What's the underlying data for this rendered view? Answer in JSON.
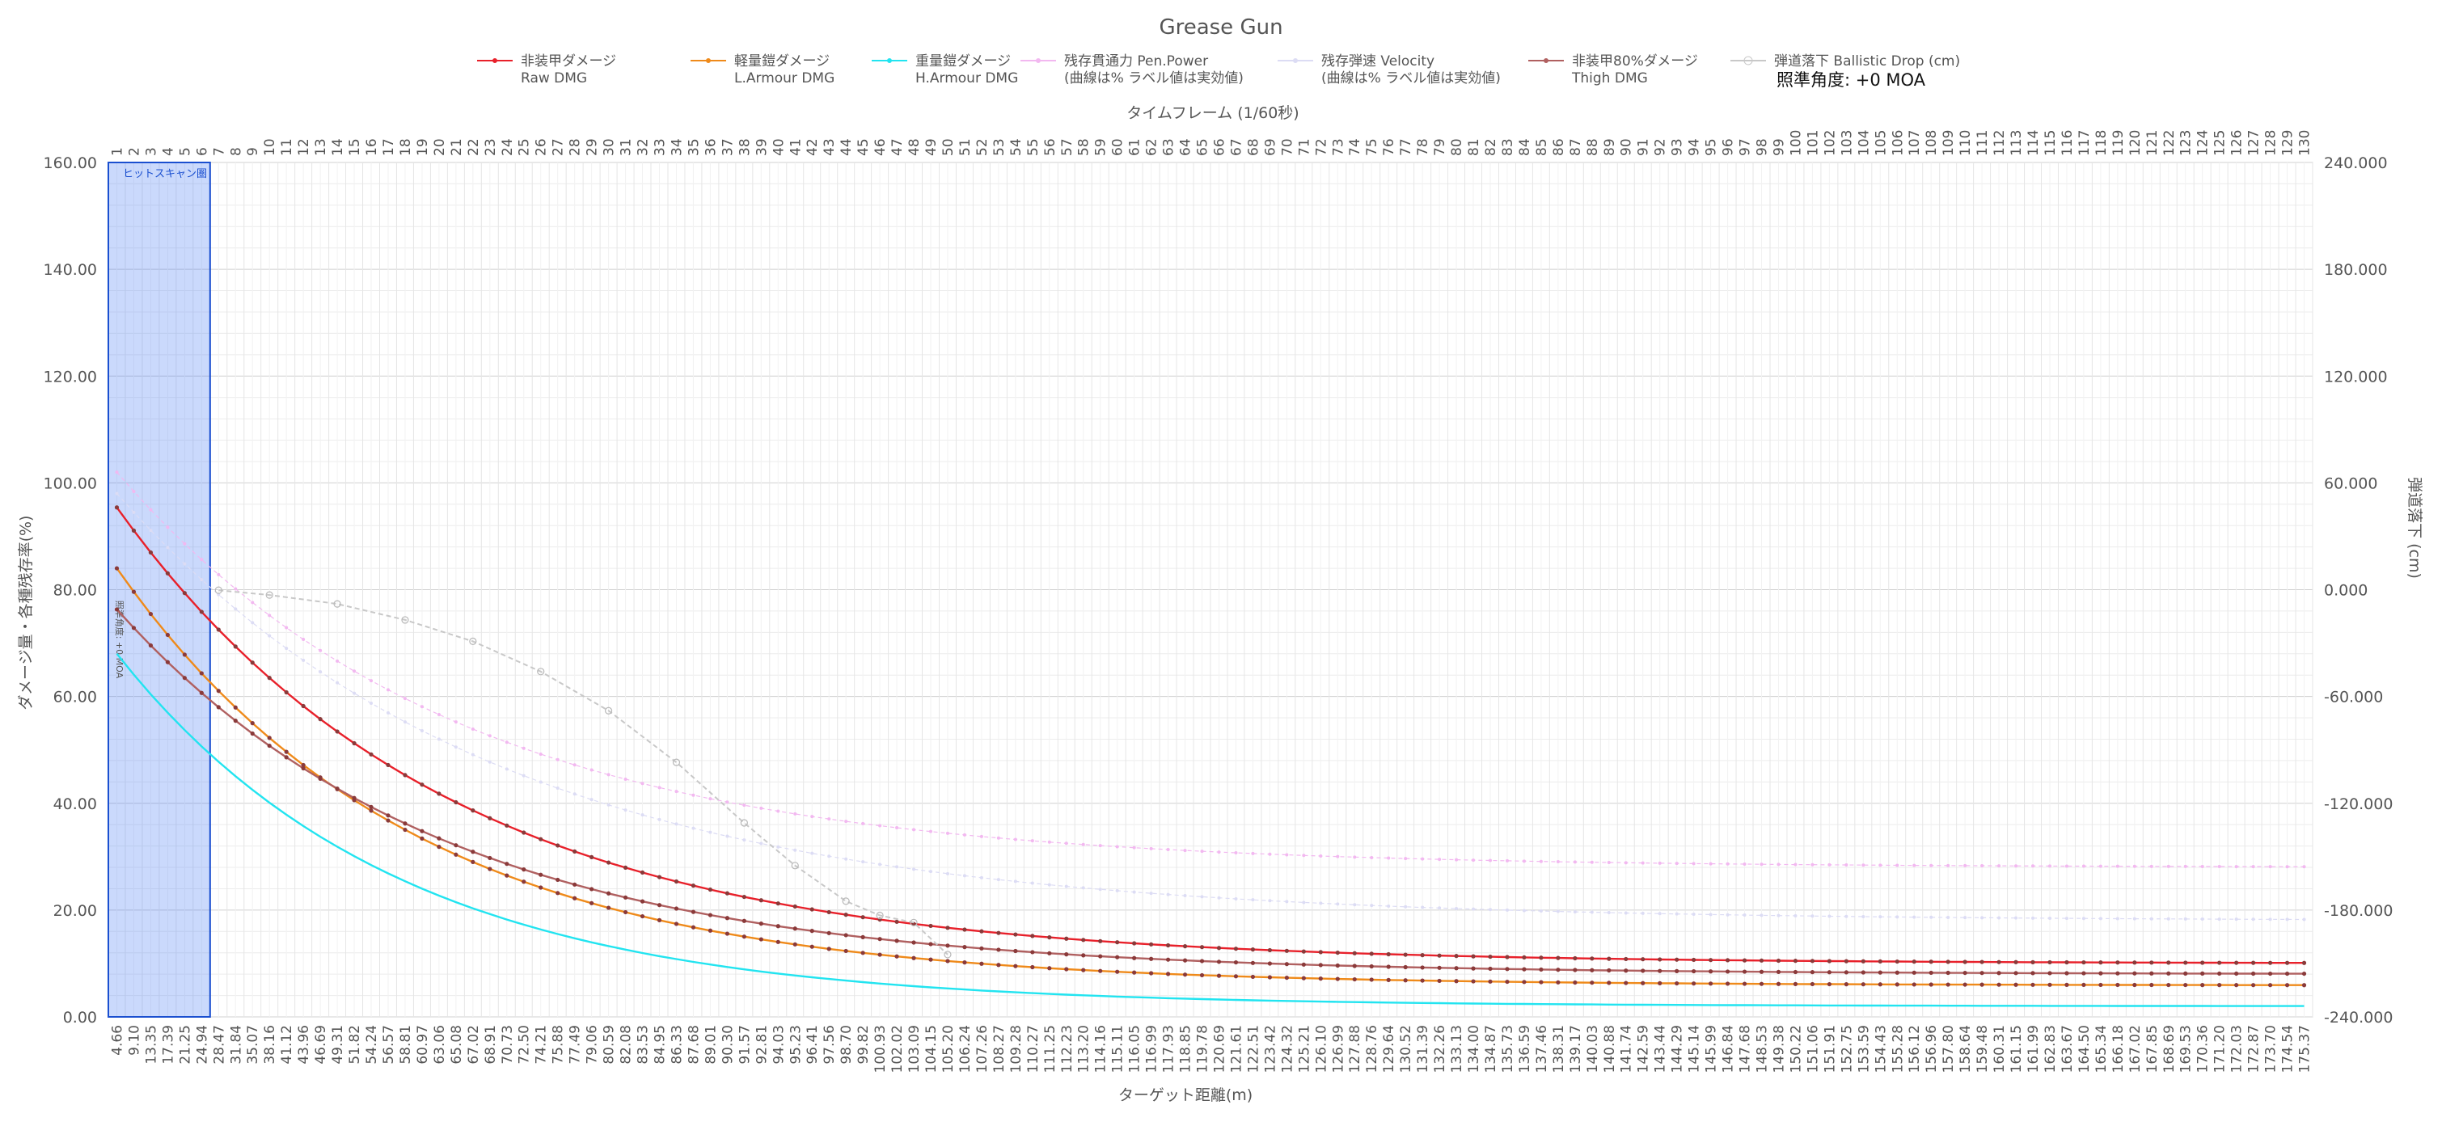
{
  "chart_data": {
    "type": "line",
    "title": "Grease Gun",
    "aim_angle_label": "照準角度: +0 MOA",
    "vertical_aim_note": "照準角度: +0 MOA",
    "hitscan_label": "ヒットスキャン圏",
    "hitscan_frames": [
      1,
      6
    ],
    "xlabel_bottom": "ターゲット距離(m)",
    "xlabel_top": "タイムフレーム (1/60秒)",
    "ylabel_left": "ダメージ量・各種残存率(%)",
    "ylabel_right": "弾道落下 (cm)",
    "ylim_left": [
      0,
      160
    ],
    "ylim_right": [
      -240,
      240
    ],
    "y_ticks_left": [
      "0.00",
      "20.00",
      "40.00",
      "60.00",
      "80.00",
      "100.00",
      "120.00",
      "140.00",
      "160.00"
    ],
    "y_ticks_right": [
      "-240.000",
      "-180.000",
      "-120.000",
      "-60.000",
      "0.000",
      "60.000",
      "120.000",
      "180.000",
      "240.000"
    ],
    "frames_top": [
      1,
      2,
      3,
      4,
      5,
      6,
      7,
      8,
      9,
      10,
      11,
      12,
      13,
      14,
      15,
      16,
      17,
      18,
      19,
      20,
      21,
      22,
      23,
      24,
      25,
      26,
      27,
      28,
      29,
      30,
      31,
      32,
      33,
      34,
      35,
      36,
      37,
      38,
      39,
      40,
      41,
      42,
      43,
      44,
      45,
      46,
      47,
      48,
      49,
      50,
      51,
      52,
      53,
      54,
      55,
      56,
      57,
      58,
      59,
      60,
      61,
      62,
      63,
      64,
      65,
      66,
      67,
      68,
      69,
      70,
      71,
      72,
      73,
      74,
      75,
      76,
      77,
      78,
      79,
      80,
      81,
      82,
      83,
      84,
      85,
      86,
      87,
      88,
      89,
      90,
      91,
      92,
      93,
      94,
      95,
      96,
      97,
      98,
      99,
      100,
      101,
      102,
      103,
      104,
      105,
      106,
      107,
      108,
      109,
      110,
      111,
      112,
      113,
      114,
      115,
      116,
      117,
      118,
      119,
      120,
      121,
      122,
      123,
      124,
      125,
      126,
      127,
      128,
      129,
      130
    ],
    "distances": [
      "4.66",
      "9.10",
      "13.35",
      "17.39",
      "21.25",
      "24.94",
      "28.47",
      "31.84",
      "35.07",
      "38.16",
      "41.12",
      "43.96",
      "46.69",
      "49.31",
      "51.82",
      "54.24",
      "56.57",
      "58.81",
      "60.97",
      "63.06",
      "65.08",
      "67.02",
      "68.91",
      "70.73",
      "72.50",
      "74.21",
      "75.88",
      "77.49",
      "79.06",
      "80.59",
      "82.08",
      "83.53",
      "84.95",
      "86.33",
      "87.68",
      "89.01",
      "90.30",
      "91.57",
      "92.81",
      "94.03",
      "95.23",
      "96.41",
      "97.56",
      "98.70",
      "99.82",
      "100.93",
      "102.02",
      "103.09",
      "104.15",
      "105.20",
      "106.24",
      "107.26",
      "108.27",
      "109.28",
      "110.27",
      "111.25",
      "112.23",
      "113.20",
      "114.16",
      "115.11",
      "116.05",
      "116.99",
      "117.93",
      "118.85",
      "119.78",
      "120.69",
      "121.61",
      "122.51",
      "123.42",
      "124.32",
      "125.21",
      "126.10",
      "126.99",
      "127.88",
      "128.76",
      "129.64",
      "130.52",
      "131.39",
      "132.26",
      "133.13",
      "134.00",
      "134.87",
      "135.73",
      "136.59",
      "137.46",
      "138.31",
      "139.17",
      "140.03",
      "140.88",
      "141.74",
      "142.59",
      "143.44",
      "144.29",
      "145.14",
      "145.99",
      "146.84",
      "147.68",
      "148.53",
      "149.38",
      "150.22",
      "151.06",
      "151.91",
      "152.75",
      "153.59",
      "154.43",
      "155.28",
      "156.12",
      "156.96",
      "157.80",
      "158.64",
      "159.48",
      "160.31",
      "161.15",
      "161.99",
      "162.83",
      "163.67",
      "164.50",
      "165.34",
      "166.18",
      "167.02",
      "167.85",
      "168.69",
      "169.53",
      "170.36",
      "171.20",
      "172.03",
      "172.87",
      "173.70",
      "174.54",
      "175.37"
    ],
    "series": [
      {
        "name": "非装甲ダメージ",
        "name2": "Raw DMG",
        "color": "#e8202a",
        "axis": "left",
        "start": 95.4,
        "end": 10.0,
        "decay": 0.052,
        "marker": "dot"
      },
      {
        "name": "軽量鎧ダメージ",
        "name2": "L.Armour DMG",
        "color": "#ef8a1a",
        "axis": "left",
        "start": 84.0,
        "end": 5.9,
        "decay": 0.058,
        "marker": "dot"
      },
      {
        "name": "重量鎧ダメージ",
        "name2": "H.Armour DMG",
        "color": "#22e4f0",
        "axis": "left",
        "start": 68.0,
        "end": 2.0,
        "decay": 0.061,
        "marker": "none"
      },
      {
        "name": "残存貫通力 Pen.Power",
        "name2": "(曲線は% ラベル値は実効値)",
        "color": "#f2b8f0",
        "axis": "left",
        "start": 102.0,
        "end": 28.0,
        "decay": 0.05,
        "marker": "dot"
      },
      {
        "name": "残存弾速 Velocity",
        "name2": "(曲線は% ラベル値は実効値)",
        "color": "#dcdcf4",
        "axis": "left",
        "start": 98.0,
        "end": 18.0,
        "decay": 0.045,
        "marker": "dot"
      },
      {
        "name": "非装甲80%ダメージ",
        "name2": "Thigh DMG",
        "color": "#b06060",
        "axis": "left",
        "start": 76.3,
        "end": 8.0,
        "decay": 0.052,
        "marker": "dot"
      },
      {
        "name": "弾道落下 Ballistic Drop (cm)",
        "name2": "",
        "color": "#c8c8c8",
        "axis": "right",
        "marker": "circle",
        "drop_points": [
          [
            7,
            -0.3
          ],
          [
            10,
            -3
          ],
          [
            14,
            -8
          ],
          [
            18,
            -17
          ],
          [
            22,
            -29
          ],
          [
            26,
            -46
          ],
          [
            30,
            -68
          ],
          [
            34,
            -97
          ],
          [
            38,
            -131
          ],
          [
            41,
            -155
          ],
          [
            44,
            -175
          ],
          [
            46,
            -183
          ],
          [
            48,
            -187
          ],
          [
            50,
            -205
          ]
        ]
      }
    ]
  }
}
